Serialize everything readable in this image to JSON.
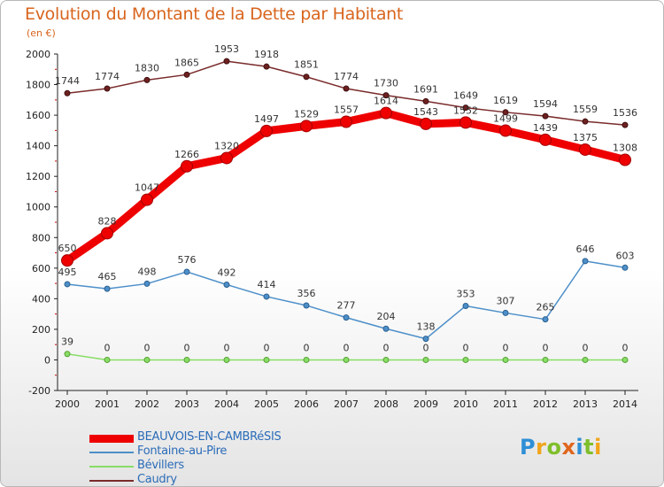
{
  "title": "Evolution du Montant de la Dette par Habitant",
  "subtitle": "(en €)",
  "brand": {
    "text": "Proxiti",
    "colors": [
      "#2e8fd6",
      "#f1a51a",
      "#7fbf2a",
      "#e0661d",
      "#2e8fd6",
      "#7fbf2a",
      "#f1a51a"
    ]
  },
  "chart_data": {
    "type": "line",
    "title": "Evolution du Montant de la Dette par Habitant",
    "unit": "(en €)",
    "xlabel": "",
    "ylabel": "",
    "x": [
      "2000",
      "2001",
      "2002",
      "2003",
      "2004",
      "2005",
      "2006",
      "2007",
      "2008",
      "2009",
      "2010",
      "2011",
      "2012",
      "2013",
      "2014"
    ],
    "ylim": [
      -200,
      2000
    ],
    "yticks": [
      -200,
      0,
      200,
      400,
      600,
      800,
      1000,
      1200,
      1400,
      1600,
      1800,
      2000
    ],
    "grid": false,
    "legend_position": "bottom-left",
    "series": [
      {
        "name": "BEAUVOIS-EN-CAMBRéSIS",
        "color": "#ee0000",
        "width": 9,
        "values": [
          650,
          828,
          1047,
          1266,
          1320,
          1497,
          1529,
          1557,
          1614,
          1543,
          1552,
          1499,
          1439,
          1375,
          1308
        ]
      },
      {
        "name": "Fontaine-au-Pire",
        "color": "#4d8fc9",
        "width": 1.5,
        "values": [
          495,
          465,
          498,
          576,
          492,
          414,
          356,
          277,
          204,
          138,
          353,
          307,
          265,
          646,
          603
        ]
      },
      {
        "name": "Bévillers",
        "color": "#88dd66",
        "width": 1.5,
        "values": [
          39,
          0,
          0,
          0,
          0,
          0,
          0,
          0,
          0,
          0,
          0,
          0,
          0,
          0,
          0
        ]
      },
      {
        "name": "Caudry",
        "color": "#7a2b2b",
        "width": 1.5,
        "values": [
          1744,
          1774,
          1830,
          1865,
          1953,
          1918,
          1851,
          1774,
          1730,
          1691,
          1649,
          1619,
          1594,
          1559,
          1536
        ]
      }
    ]
  }
}
